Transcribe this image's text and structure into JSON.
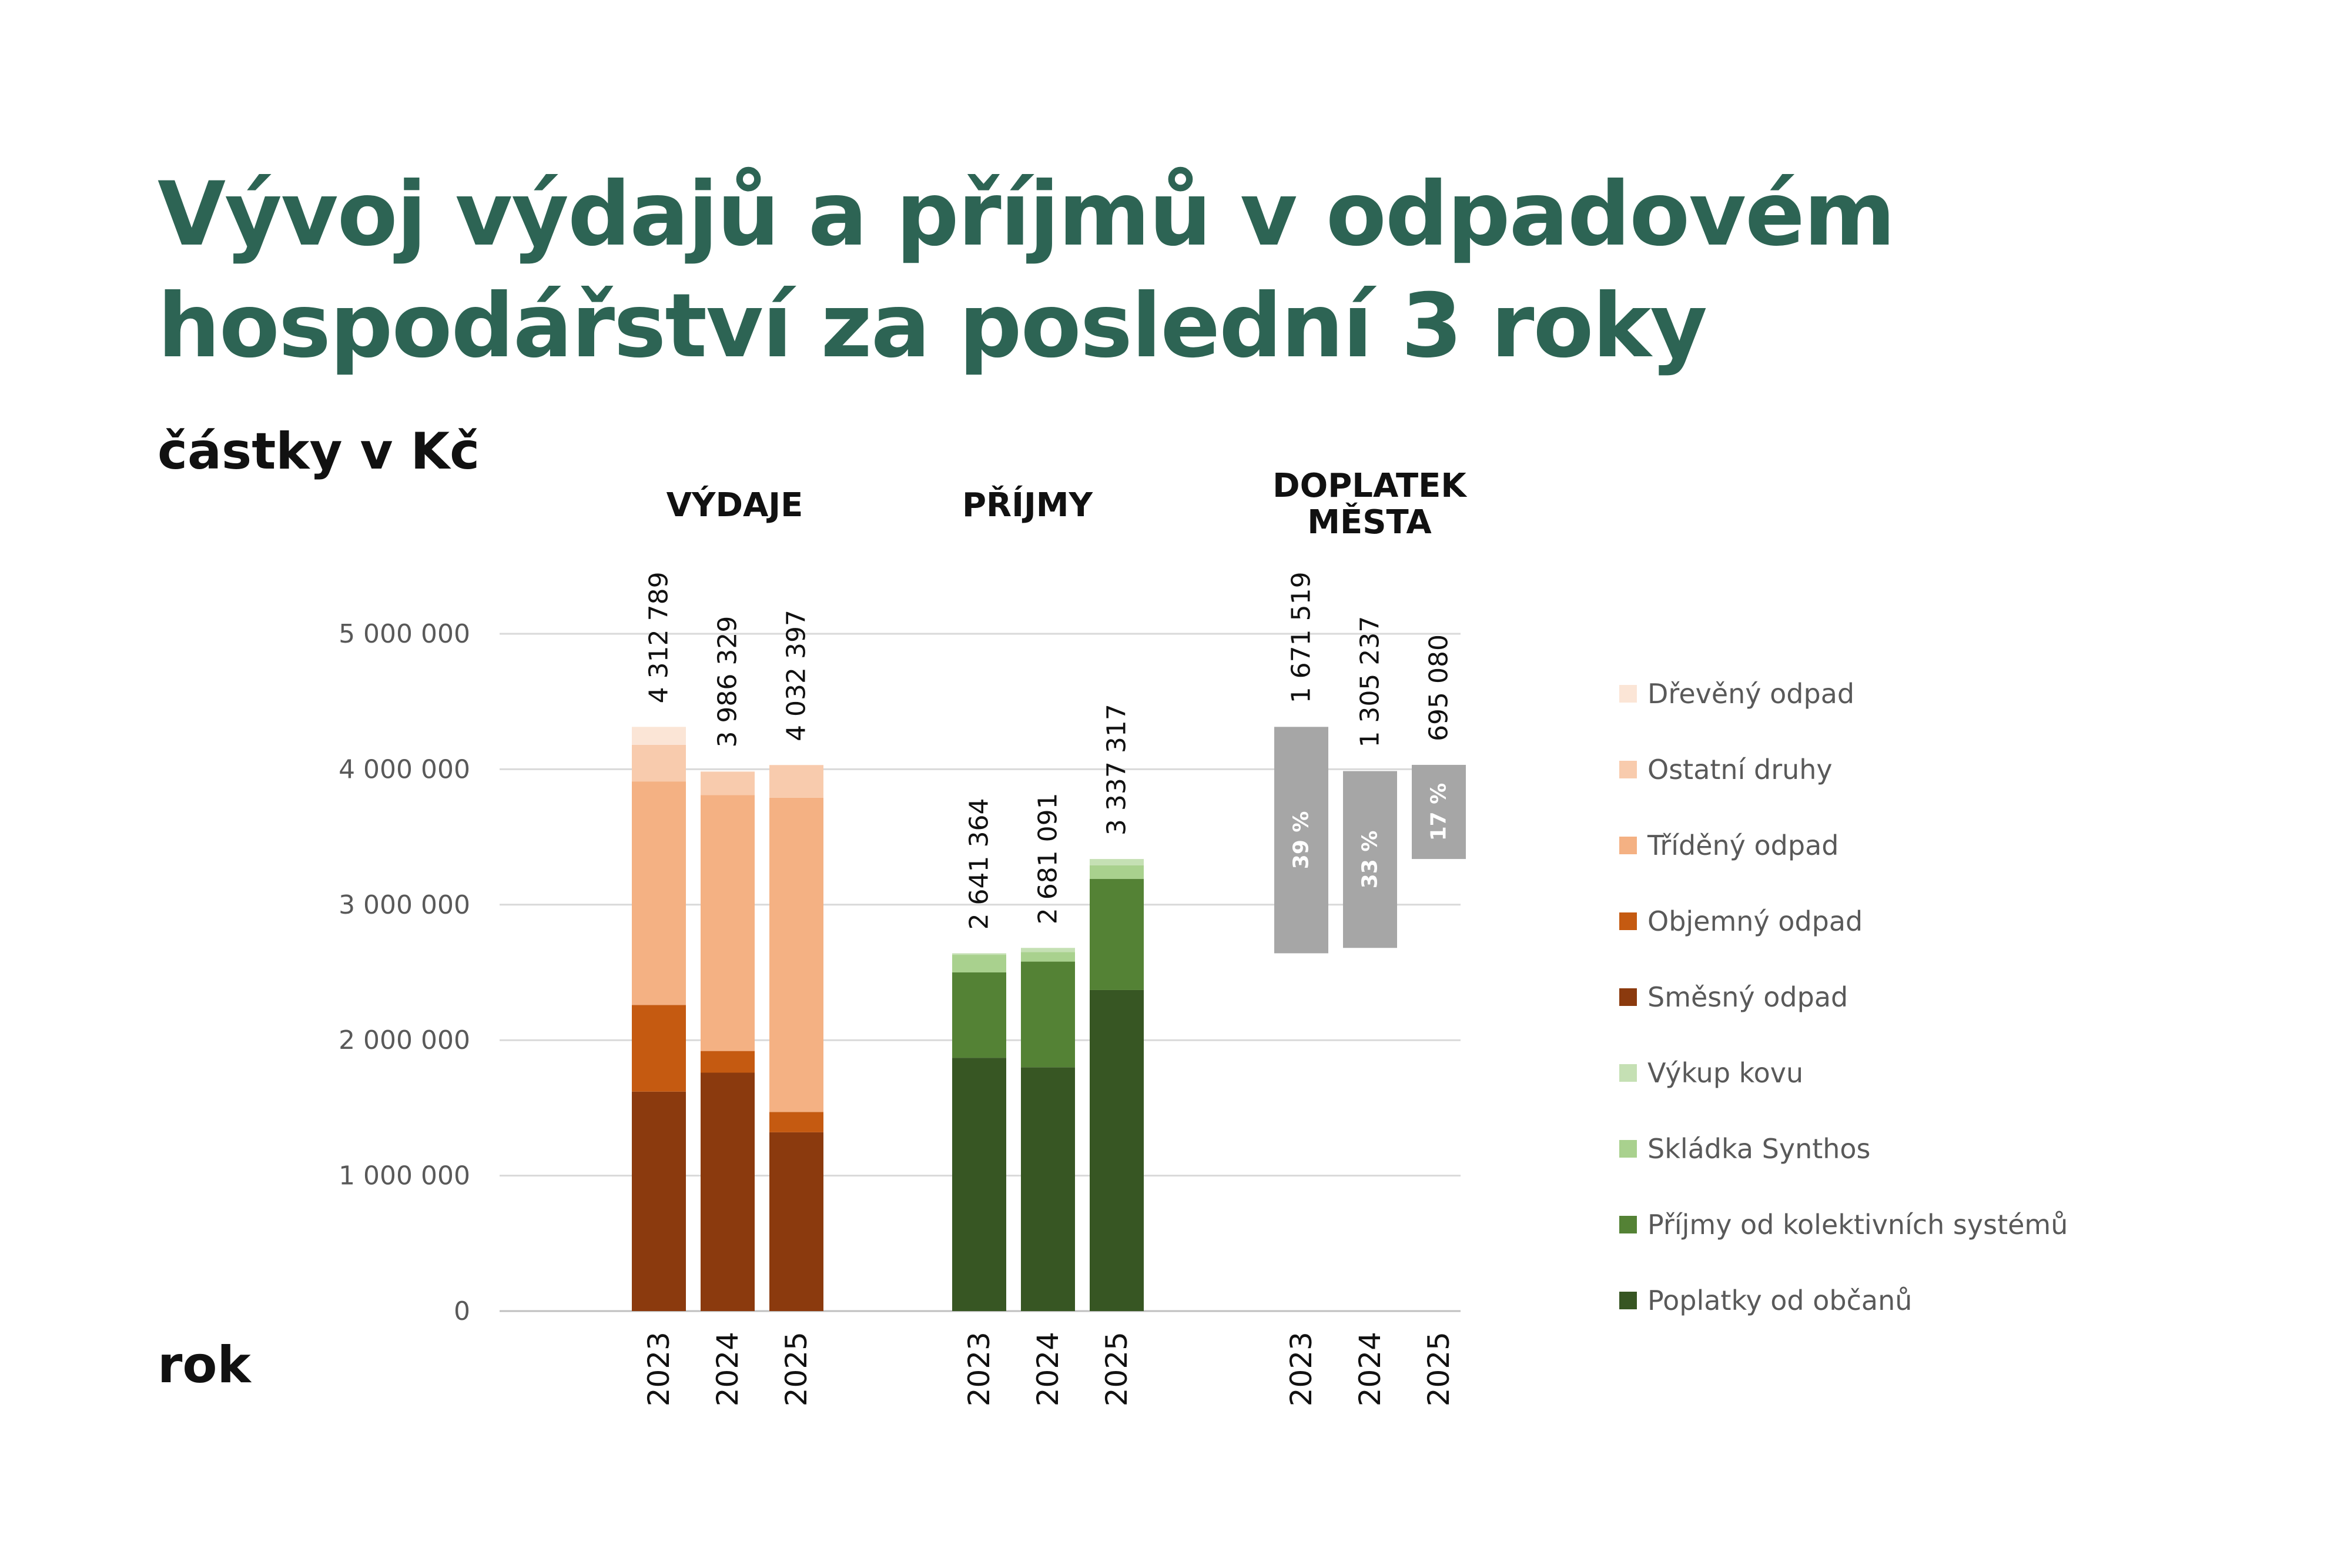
{
  "title": {
    "line1": "Vývoj výdajů a příjmů v odpadovém",
    "line2": "hospodářství za poslední 3 roky"
  },
  "y_unit_label": "částky v Kč",
  "x_axis_label": "rok",
  "chart_data": {
    "type": "bar",
    "stacked": true,
    "ylim": [
      0,
      5000000
    ],
    "yticks": [
      0,
      1000000,
      2000000,
      3000000,
      4000000,
      5000000
    ],
    "ytick_labels": [
      "0",
      "1 000 000",
      "2 000 000",
      "3 000 000",
      "4 000 000",
      "5 000 000"
    ],
    "grid": true,
    "legend_position": "right",
    "groups": [
      {
        "key": "vydaje",
        "title_lines": [
          "VÝDAJE"
        ],
        "categories": [
          "2023",
          "2024",
          "2025"
        ],
        "totals": [
          4312789,
          3986329,
          4032397
        ],
        "total_labels": [
          "4 312 789",
          "3 986 329",
          "4 032 397"
        ],
        "series": [
          {
            "name": "Směsný odpad",
            "color": "#8b3a0e",
            "values": [
              1620000,
              1760000,
              1320000
            ]
          },
          {
            "name": "Objemný odpad",
            "color": "#c55a11",
            "values": [
              640000,
              160000,
              150000
            ]
          },
          {
            "name": "Tříděný odpad",
            "color": "#f4b183",
            "values": [
              1650000,
              1890000,
              2320000
            ]
          },
          {
            "name": "Ostatní druhy",
            "color": "#f8cbad",
            "values": [
              270000,
              170000,
              240000
            ]
          },
          {
            "name": "Dřevěný odpad",
            "color": "#fbe5d6",
            "values": [
              132789,
              6329,
              2397
            ]
          }
        ]
      },
      {
        "key": "prijmy",
        "title_lines": [
          "PŘÍJMY"
        ],
        "categories": [
          "2023",
          "2024",
          "2025"
        ],
        "totals": [
          2641364,
          2681091,
          3337317
        ],
        "total_labels": [
          "2 641 364",
          "2 681 091",
          "3 337 317"
        ],
        "series": [
          {
            "name": "Poplatky od občanů",
            "color": "#375623",
            "values": [
              1870000,
              1800000,
              2370000
            ]
          },
          {
            "name": "Příjmy od kolektivních systémů",
            "color": "#548235",
            "values": [
              630000,
              780000,
              820000
            ]
          },
          {
            "name": "Skládka Synthos",
            "color": "#a9d18e",
            "values": [
              130000,
              70000,
              100000
            ]
          },
          {
            "name": "Výkup kovu",
            "color": "#c5e0b4",
            "values": [
              11364,
              31091,
              47317
            ]
          }
        ]
      },
      {
        "key": "doplatek",
        "title_lines": [
          "DOPLATEK",
          "MĚSTA"
        ],
        "categories": [
          "2023",
          "2024",
          "2025"
        ],
        "floating": true,
        "bottoms": [
          2641364,
          2681091,
          3337317
        ],
        "values": [
          1671519,
          1305237,
          695080
        ],
        "value_labels": [
          "1 671 519",
          "1 305 237",
          "695 080"
        ],
        "percent_labels": [
          "39 %",
          "33 %",
          "17 %"
        ],
        "color": "#a6a6a6"
      }
    ],
    "legend": [
      {
        "name": "Dřevěný odpad",
        "color": "#fbe5d6"
      },
      {
        "name": "Ostatní druhy",
        "color": "#f8cbad"
      },
      {
        "name": "Tříděný odpad",
        "color": "#f4b183"
      },
      {
        "name": "Objemný odpad",
        "color": "#c55a11"
      },
      {
        "name": "Směsný odpad",
        "color": "#8b3a0e"
      },
      {
        "name": "Výkup kovu",
        "color": "#c5e0b4"
      },
      {
        "name": "Skládka Synthos",
        "color": "#a9d18e"
      },
      {
        "name": "Příjmy od kolektivních systémů",
        "color": "#548235"
      },
      {
        "name": "Poplatky od občanů",
        "color": "#375623"
      }
    ]
  }
}
